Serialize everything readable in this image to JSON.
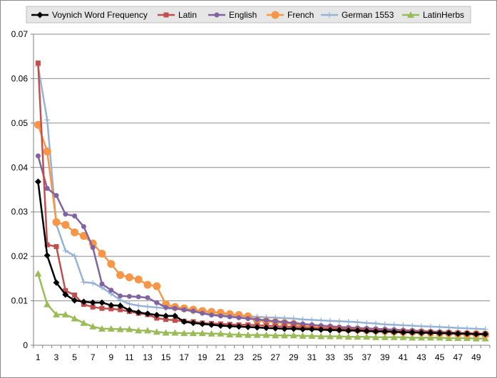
{
  "chart_data": {
    "type": "line",
    "title": "",
    "xlabel": "",
    "ylabel": "",
    "ylim": [
      0,
      0.07
    ],
    "yticks": [
      "0",
      "0.01",
      "0.02",
      "0.03",
      "0.04",
      "0.05",
      "0.06",
      "0.07"
    ],
    "grid": "horizontal",
    "legend_position": "top",
    "x": [
      1,
      2,
      3,
      4,
      5,
      6,
      7,
      8,
      9,
      10,
      11,
      12,
      13,
      14,
      15,
      16,
      17,
      18,
      19,
      20,
      21,
      22,
      23,
      24,
      25,
      26,
      27,
      28,
      29,
      30,
      31,
      32,
      33,
      34,
      35,
      36,
      37,
      38,
      39,
      40,
      41,
      42,
      43,
      44,
      45,
      46,
      47,
      48,
      49,
      50
    ],
    "xtick_labels": [
      "1",
      "3",
      "5",
      "7",
      "9",
      "11",
      "13",
      "15",
      "17",
      "19",
      "21",
      "23",
      "25",
      "27",
      "29",
      "31",
      "33",
      "35",
      "37",
      "39",
      "41",
      "43",
      "45",
      "47",
      "49"
    ],
    "series": [
      {
        "name": "Voynich Word Frequency",
        "color": "#000000",
        "marker": "diamond",
        "values": [
          0.0368,
          0.0202,
          0.0141,
          0.0114,
          0.0101,
          0.0098,
          0.0096,
          0.0096,
          0.009,
          0.0089,
          0.0079,
          0.0074,
          0.0071,
          0.0068,
          0.0066,
          0.0066,
          0.0053,
          0.005,
          0.0048,
          0.0046,
          0.0044,
          0.0043,
          0.0042,
          0.0041,
          0.004,
          0.0039,
          0.0038,
          0.0037,
          0.0037,
          0.0036,
          0.0036,
          0.0035,
          0.0034,
          0.0034,
          0.0033,
          0.0033,
          0.0032,
          0.0031,
          0.0031,
          0.003,
          0.0029,
          0.0029,
          0.0028,
          0.0028,
          0.0027,
          0.0027,
          0.0026,
          0.0026,
          0.0025,
          0.0025
        ]
      },
      {
        "name": "Latin",
        "color": "#c0504d",
        "marker": "square",
        "values": [
          0.0635,
          0.0226,
          0.0222,
          0.0123,
          0.0113,
          0.0092,
          0.0086,
          0.0083,
          0.0082,
          0.008,
          0.0076,
          0.0072,
          0.0069,
          0.0061,
          0.0058,
          0.0056,
          0.0054,
          0.0053,
          0.005,
          0.0049,
          0.0048,
          0.0047,
          0.0046,
          0.0046,
          0.0045,
          0.0044,
          0.0043,
          0.0042,
          0.0041,
          0.004,
          0.0039,
          0.0038,
          0.0038,
          0.0037,
          0.0036,
          0.0035,
          0.0034,
          0.0033,
          0.0032,
          0.0031,
          0.0031,
          0.003,
          0.003,
          0.0029,
          0.0028,
          0.0028,
          0.0027,
          0.0027,
          0.0026,
          0.0026
        ]
      },
      {
        "name": "English",
        "color": "#8064a2",
        "marker": "circle",
        "values": [
          0.0426,
          0.0353,
          0.0337,
          0.0295,
          0.0291,
          0.0267,
          0.022,
          0.0138,
          0.0124,
          0.0111,
          0.011,
          0.0109,
          0.0107,
          0.0096,
          0.0085,
          0.0083,
          0.008,
          0.0077,
          0.0072,
          0.0068,
          0.0066,
          0.0064,
          0.0062,
          0.006,
          0.0058,
          0.0056,
          0.0054,
          0.0052,
          0.005,
          0.0048,
          0.0046,
          0.0044,
          0.0043,
          0.0041,
          0.004,
          0.0039,
          0.0038,
          0.0037,
          0.0036,
          0.0035,
          0.0034,
          0.0033,
          0.0032,
          0.0031,
          0.003,
          0.0029,
          0.0028,
          0.0027,
          0.0026,
          0.0025
        ]
      },
      {
        "name": "French",
        "color": "#f79646",
        "marker": "circle-large",
        "values": [
          0.0496,
          0.0436,
          0.0277,
          0.0271,
          0.0254,
          0.0246,
          0.0229,
          0.0206,
          0.0183,
          0.0158,
          0.0153,
          0.0148,
          0.0136,
          0.0133,
          0.0092,
          0.0086,
          0.0083,
          0.008,
          0.0077,
          0.0075,
          0.0073,
          0.007,
          0.0068,
          0.0065,
          0.0056,
          0.0054,
          0.0052,
          0.005,
          0.0048,
          0.0043,
          0.0041,
          0.004,
          0.0039,
          0.0037,
          0.0036,
          0.0035,
          0.0034,
          0.0033,
          0.0032,
          0.0031,
          0.003,
          0.003,
          0.0029,
          0.0028,
          0.0027,
          0.0027,
          0.0026,
          0.0025,
          0.0025,
          0.0024
        ]
      },
      {
        "name": "German 1553",
        "color": "#95b3d7",
        "marker": "plus",
        "values": [
          0.0628,
          0.0507,
          0.0272,
          0.0213,
          0.0201,
          0.0142,
          0.014,
          0.013,
          0.0116,
          0.0102,
          0.0093,
          0.0089,
          0.0087,
          0.0085,
          0.0083,
          0.0082,
          0.008,
          0.0076,
          0.0073,
          0.007,
          0.0068,
          0.0067,
          0.0066,
          0.0065,
          0.0064,
          0.0063,
          0.0062,
          0.0061,
          0.006,
          0.0058,
          0.0057,
          0.0056,
          0.0055,
          0.0054,
          0.0053,
          0.0052,
          0.005,
          0.0049,
          0.0047,
          0.0046,
          0.0045,
          0.0044,
          0.0043,
          0.0042,
          0.0041,
          0.004,
          0.0039,
          0.0038,
          0.0037,
          0.0036
        ]
      },
      {
        "name": "LatinHerbs",
        "color": "#9bbb59",
        "marker": "triangle",
        "values": [
          0.0161,
          0.0092,
          0.0069,
          0.0069,
          0.006,
          0.005,
          0.0042,
          0.0037,
          0.0037,
          0.0036,
          0.0036,
          0.0033,
          0.0033,
          0.003,
          0.0028,
          0.0028,
          0.0027,
          0.0027,
          0.0027,
          0.0026,
          0.0026,
          0.0024,
          0.0024,
          0.0023,
          0.0023,
          0.0023,
          0.0022,
          0.0022,
          0.0022,
          0.0021,
          0.0021,
          0.002,
          0.002,
          0.002,
          0.0019,
          0.0019,
          0.0019,
          0.0018,
          0.0018,
          0.0018,
          0.0018,
          0.0017,
          0.0017,
          0.0017,
          0.0017,
          0.0016,
          0.0016,
          0.0016,
          0.0015,
          0.0015
        ]
      }
    ]
  },
  "colors": {
    "background": "#ffffff",
    "grid": "#8c8c8c",
    "axis": "#7f7f7f",
    "legend_bg": "#e6e6e6"
  }
}
